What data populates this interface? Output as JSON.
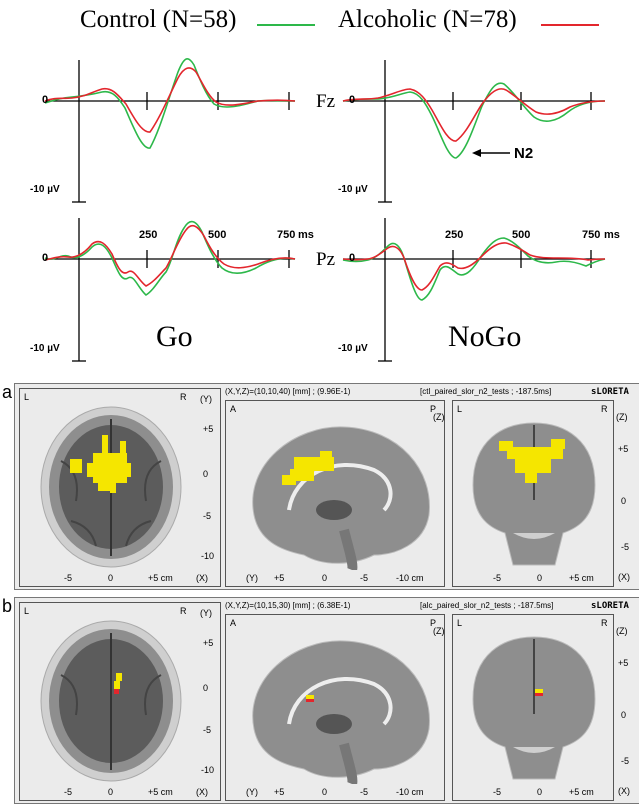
{
  "legend": {
    "control": {
      "label": "Control (N=58)",
      "color": "#2db84a"
    },
    "alcoholic": {
      "label": "Alcoholic (N=78)",
      "color": "#e3262d"
    }
  },
  "erp": {
    "amplitude_label": "-10 µV",
    "zero_label": "0",
    "time_ticks": [
      "250",
      "500",
      "750"
    ],
    "time_unit": "ms",
    "channels": [
      "Fz",
      "Pz"
    ],
    "conditions": [
      "Go",
      "NoGo"
    ],
    "n2_annotation": "N2"
  },
  "brain": {
    "row_labels": [
      "a",
      "b"
    ],
    "method": "sLORETA",
    "rows": [
      {
        "coords": "(X,Y,Z)=(10,10,40) [mm] ;  (9.96E-1)",
        "test": "[ctl_paired_slor_n2_tests ; -187.5ms]"
      },
      {
        "coords": "(X,Y,Z)=(10,15,30) [mm] ;  (6.38E-1)",
        "test": "[alc_paired_slor_n2_tests ; -187.5ms]"
      }
    ],
    "axial": {
      "left": "L",
      "right": "R",
      "axis": "(Y)",
      "x_axis": "(X)",
      "y_ticks": [
        "+5",
        "0",
        "-5",
        "-10"
      ],
      "x_ticks": [
        "-5",
        "0",
        "+5 cm"
      ]
    },
    "sagittal": {
      "left": "A",
      "right": "P",
      "axis": "(Z)",
      "x_axis": "(Y)",
      "x_ticks": [
        "+5",
        "0",
        "-5",
        "-10 cm"
      ]
    },
    "coronal": {
      "left": "L",
      "right": "R",
      "axis": "(Z)",
      "x_axis": "(X)",
      "y_ticks": [
        "+5",
        "0",
        "-5"
      ],
      "x_ticks": [
        "-5",
        "0",
        "+5 cm"
      ]
    }
  }
}
